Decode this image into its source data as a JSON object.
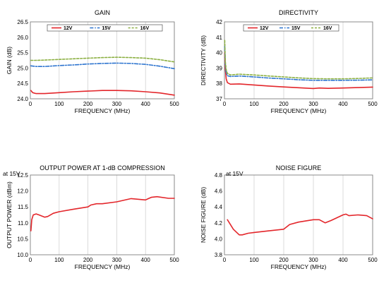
{
  "colors": {
    "red": "#e3262b",
    "blue": "#2d74cf",
    "green": "#8cb043",
    "grid": "#d2d2d2",
    "axis": "#7f7f7f"
  },
  "chart_data": [
    {
      "id": "gain",
      "type": "line",
      "title": "GAIN",
      "note": "",
      "xlabel": "FREQUENCY (MHz)",
      "ylabel": "GAIN (dB)",
      "xlim": [
        0,
        500
      ],
      "ylim": [
        24.0,
        26.5
      ],
      "xticks": [
        0,
        100,
        200,
        300,
        400,
        500
      ],
      "xtick_labels": [
        "0",
        "100",
        "200",
        "300",
        "400",
        "500"
      ],
      "yticks": [
        24.0,
        24.5,
        25.0,
        25.5,
        26.0,
        26.5
      ],
      "ytick_labels": [
        "24.0",
        "24.5",
        "25.0",
        "25.5",
        "26.0",
        "26.5"
      ],
      "grid": "vertical",
      "legend": "top",
      "series": [
        {
          "name": "12V",
          "color": "red",
          "style": "solid",
          "x": [
            2,
            8,
            20,
            50,
            100,
            150,
            200,
            250,
            300,
            350,
            400,
            450,
            500
          ],
          "y": [
            24.27,
            24.2,
            24.17,
            24.17,
            24.2,
            24.23,
            24.25,
            24.27,
            24.27,
            24.26,
            24.23,
            24.19,
            24.12
          ]
        },
        {
          "name": "15V",
          "color": "blue",
          "style": "dashdot",
          "x": [
            2,
            20,
            50,
            100,
            150,
            200,
            250,
            300,
            350,
            400,
            450,
            500
          ],
          "y": [
            25.07,
            25.05,
            25.05,
            25.08,
            25.1,
            25.13,
            25.15,
            25.16,
            25.15,
            25.12,
            25.06,
            24.98
          ]
        },
        {
          "name": "16V",
          "color": "green",
          "style": "dashed",
          "x": [
            2,
            20,
            50,
            100,
            150,
            200,
            250,
            300,
            350,
            400,
            450,
            500
          ],
          "y": [
            25.25,
            25.25,
            25.26,
            25.28,
            25.3,
            25.32,
            25.34,
            25.35,
            25.34,
            25.32,
            25.27,
            25.2
          ]
        }
      ]
    },
    {
      "id": "directivity",
      "type": "line",
      "title": "DIRECTIVITY",
      "note": "",
      "xlabel": "FREQUENCY (MHz)",
      "ylabel": "DIRECTIVITY (dB)",
      "xlim": [
        0,
        500
      ],
      "ylim": [
        37,
        42
      ],
      "xticks": [
        0,
        100,
        200,
        300,
        400,
        500
      ],
      "xtick_labels": [
        "0",
        "100",
        "200",
        "300",
        "400",
        "500"
      ],
      "yticks": [
        37,
        38,
        39,
        40,
        41,
        42
      ],
      "ytick_labels": [
        "37",
        "38",
        "39",
        "40",
        "41",
        "42"
      ],
      "grid": "vertical",
      "legend": "top",
      "series": [
        {
          "name": "12V",
          "color": "red",
          "style": "solid",
          "x": [
            1,
            3,
            6,
            10,
            20,
            50,
            100,
            150,
            200,
            250,
            300,
            320,
            350,
            400,
            450,
            500
          ],
          "y": [
            40.0,
            38.9,
            38.3,
            38.05,
            37.95,
            37.97,
            37.9,
            37.83,
            37.77,
            37.72,
            37.67,
            37.7,
            37.68,
            37.7,
            37.73,
            37.76
          ]
        },
        {
          "name": "15V",
          "color": "blue",
          "style": "dashdot",
          "x": [
            1,
            3,
            6,
            10,
            20,
            50,
            100,
            150,
            200,
            250,
            300,
            350,
            400,
            450,
            500
          ],
          "y": [
            40.4,
            39.2,
            38.7,
            38.5,
            38.45,
            38.48,
            38.42,
            38.35,
            38.3,
            38.24,
            38.2,
            38.2,
            38.2,
            38.21,
            38.23
          ]
        },
        {
          "name": "16V",
          "color": "green",
          "style": "dashed",
          "x": [
            1,
            3,
            6,
            10,
            20,
            50,
            100,
            150,
            200,
            250,
            300,
            350,
            400,
            450,
            500
          ],
          "y": [
            40.8,
            39.4,
            38.9,
            38.65,
            38.55,
            38.6,
            38.55,
            38.48,
            38.42,
            38.36,
            38.31,
            38.3,
            38.3,
            38.32,
            38.36
          ]
        }
      ]
    },
    {
      "id": "p1db",
      "type": "line",
      "title": "OUTPUT POWER AT 1-dB COMPRESSION",
      "note": "at 15V",
      "xlabel": "FREQUENCY (MHz)",
      "ylabel": "OUTPUT POWER (dBm)",
      "xlim": [
        0,
        500
      ],
      "ylim": [
        10.0,
        12.5
      ],
      "xticks": [
        0,
        100,
        200,
        300,
        400,
        500
      ],
      "xtick_labels": [
        "0",
        "100",
        "200",
        "300",
        "400",
        "500"
      ],
      "yticks": [
        10.0,
        10.5,
        11.0,
        11.5,
        12.0,
        12.5
      ],
      "ytick_labels": [
        "10.0",
        "10.5",
        "11.0",
        "11.5",
        "12.0",
        "12.5"
      ],
      "grid": "vertical",
      "legend": "none",
      "series": [
        {
          "name": "",
          "color": "red",
          "style": "solid",
          "x": [
            2,
            5,
            10,
            20,
            30,
            50,
            60,
            80,
            100,
            150,
            200,
            210,
            230,
            250,
            300,
            350,
            400,
            410,
            420,
            440,
            480,
            500
          ],
          "y": [
            10.75,
            11.1,
            11.25,
            11.28,
            11.25,
            11.18,
            11.2,
            11.3,
            11.35,
            11.43,
            11.5,
            11.56,
            11.6,
            11.6,
            11.66,
            11.76,
            11.72,
            11.76,
            11.8,
            11.82,
            11.77,
            11.77
          ]
        }
      ]
    },
    {
      "id": "nf",
      "type": "line",
      "title": "NOISE FIGURE",
      "note": "at 15V",
      "xlabel": "FREQUENCY (MHz)",
      "ylabel": "NOISE FIGURE (dB)",
      "xlim": [
        0,
        500
      ],
      "ylim": [
        3.8,
        4.8
      ],
      "xticks": [
        0,
        100,
        200,
        300,
        400,
        500
      ],
      "xtick_labels": [
        "0",
        "100",
        "200",
        "300",
        "400",
        "500"
      ],
      "yticks": [
        3.8,
        4.0,
        4.2,
        4.4,
        4.6,
        4.8
      ],
      "ytick_labels": [
        "3.8",
        "4.0",
        "4.2",
        "4.4",
        "4.6",
        "4.8"
      ],
      "grid": "vertical",
      "legend": "none",
      "series": [
        {
          "name": "",
          "color": "red",
          "style": "solid",
          "x": [
            10,
            30,
            50,
            60,
            80,
            100,
            150,
            200,
            220,
            250,
            300,
            320,
            340,
            360,
            400,
            410,
            420,
            450,
            480,
            500
          ],
          "y": [
            4.24,
            4.12,
            4.05,
            4.05,
            4.07,
            4.08,
            4.1,
            4.12,
            4.18,
            4.21,
            4.24,
            4.24,
            4.2,
            4.23,
            4.3,
            4.31,
            4.29,
            4.3,
            4.29,
            4.25
          ]
        }
      ]
    }
  ]
}
